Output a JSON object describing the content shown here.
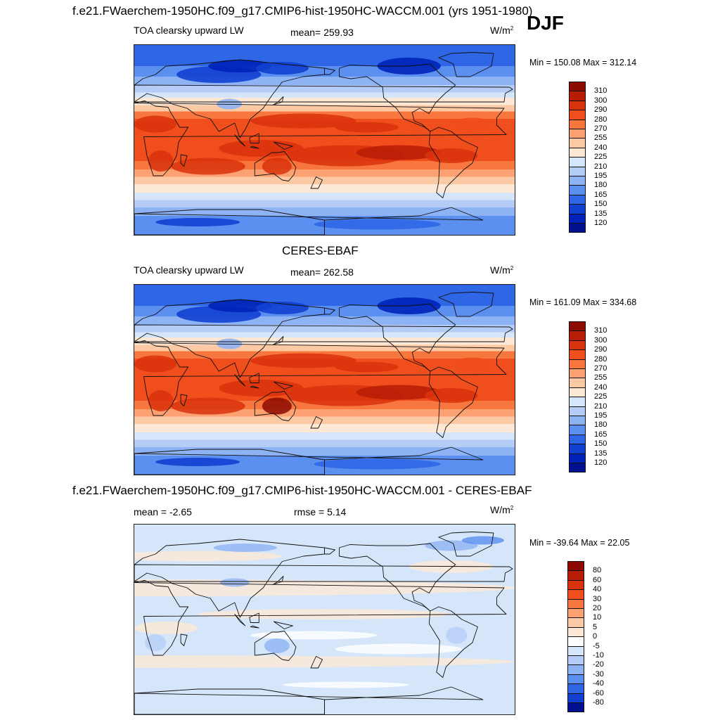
{
  "season": "DJF",
  "panels": [
    {
      "title": "f.e21.FWaerchem-1950HC.f09_g17.CMIP6-hist-1950HC-WACCM.001 (yrs 1951-1980)",
      "left_label": "TOA clearsky upward LW",
      "mid_label": "mean= 259.93",
      "units": "W/m",
      "units_sup": "2",
      "minmax": "Min = 150.08 Max = 312.14",
      "kind": "field",
      "colorbar_labels": [
        "310",
        "300",
        "290",
        "280",
        "270",
        "255",
        "240",
        "225",
        "210",
        "195",
        "180",
        "165",
        "150",
        "135",
        "120"
      ],
      "colors": [
        "#8c0a00",
        "#b71c05",
        "#d9330d",
        "#f04e1c",
        "#f8773e",
        "#fba172",
        "#fcc9a5",
        "#fde8d6",
        "#d6e6fa",
        "#b5cdf6",
        "#8eb3f4",
        "#5b8ff0",
        "#2f66e6",
        "#1240d0",
        "#0022b8",
        "#00108e"
      ]
    },
    {
      "title": "CERES-EBAF",
      "left_label": "TOA clearsky upward LW",
      "mid_label": "mean= 262.58",
      "units": "W/m",
      "units_sup": "2",
      "minmax": "Min = 161.09 Max = 334.68",
      "kind": "field",
      "colorbar_labels": [
        "310",
        "300",
        "290",
        "280",
        "270",
        "255",
        "240",
        "225",
        "210",
        "195",
        "180",
        "165",
        "150",
        "135",
        "120"
      ],
      "colors": [
        "#8c0a00",
        "#b71c05",
        "#d9330d",
        "#f04e1c",
        "#f8773e",
        "#fba172",
        "#fcc9a5",
        "#fde8d6",
        "#d6e6fa",
        "#b5cdf6",
        "#8eb3f4",
        "#5b8ff0",
        "#2f66e6",
        "#1240d0",
        "#0022b8",
        "#00108e"
      ]
    },
    {
      "title": "f.e21.FWaerchem-1950HC.f09_g17.CMIP6-hist-1950HC-WACCM.001 - CERES-EBAF",
      "left_label": "mean =  -2.65",
      "mid_label": "rmse =   5.14",
      "units": "W/m",
      "units_sup": "2",
      "minmax": "Min = -39.64 Max =  22.05",
      "kind": "diff",
      "colorbar_labels": [
        "80",
        "60",
        "40",
        "30",
        "20",
        "10",
        "5",
        "0",
        "-5",
        "-10",
        "-20",
        "-30",
        "-40",
        "-60",
        "-80"
      ],
      "colors": [
        "#8c0a00",
        "#b71c05",
        "#d9330d",
        "#f04e1c",
        "#f8773e",
        "#fba172",
        "#fcc9a5",
        "#fde8d6",
        "#ffffff",
        "#d6e6fa",
        "#b5cdf6",
        "#8eb3f4",
        "#5b8ff0",
        "#2f66e6",
        "#1240d0",
        "#00108e"
      ]
    }
  ]
}
